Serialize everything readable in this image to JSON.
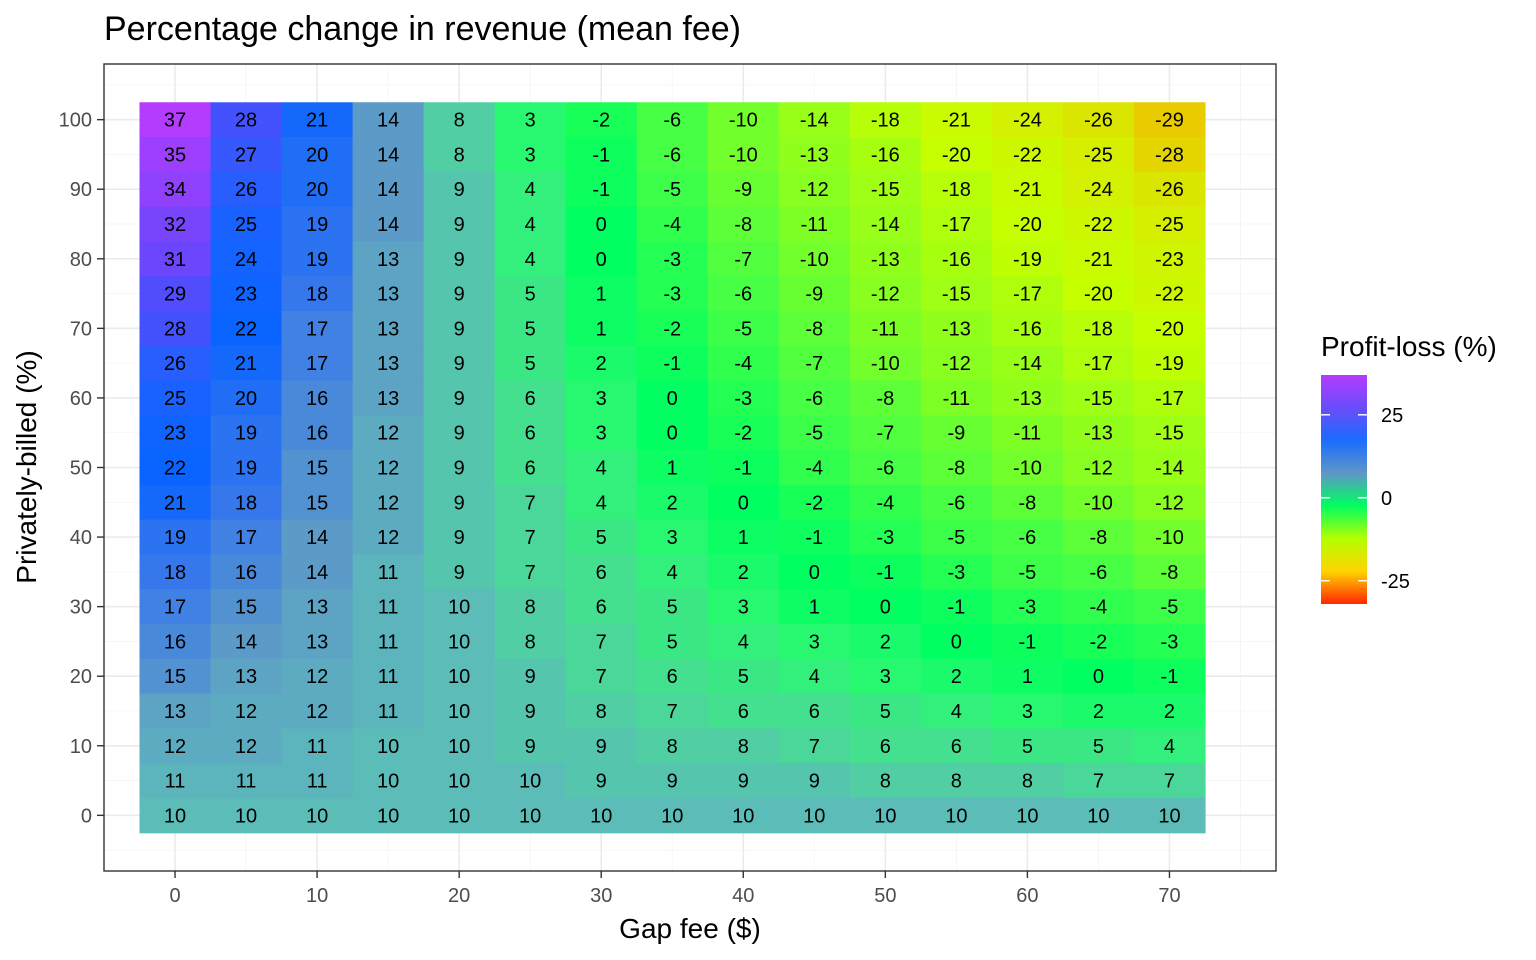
{
  "chart_data": {
    "type": "heatmap",
    "title": "Percentage change in revenue (mean fee)",
    "xlabel": "Gap fee ($)",
    "ylabel": "Privately-billed (%)",
    "x": [
      0,
      5,
      10,
      15,
      20,
      25,
      30,
      35,
      40,
      45,
      50,
      55,
      60,
      65,
      70
    ],
    "y": [
      0,
      5,
      10,
      15,
      20,
      25,
      30,
      35,
      40,
      45,
      50,
      55,
      60,
      65,
      70,
      75,
      80,
      85,
      90,
      95,
      100
    ],
    "values_top_to_bottom": [
      [
        37,
        28,
        21,
        14,
        8,
        3,
        -2,
        -6,
        -10,
        -14,
        -18,
        -21,
        -24,
        -26,
        -29
      ],
      [
        35,
        27,
        20,
        14,
        8,
        3,
        -1,
        -6,
        -10,
        -13,
        -16,
        -20,
        -22,
        -25,
        -28
      ],
      [
        34,
        26,
        20,
        14,
        9,
        4,
        -1,
        -5,
        -9,
        -12,
        -15,
        -18,
        -21,
        -24,
        -26
      ],
      [
        32,
        25,
        19,
        14,
        9,
        4,
        0,
        -4,
        -8,
        -11,
        -14,
        -17,
        -20,
        -22,
        -25
      ],
      [
        31,
        24,
        19,
        13,
        9,
        4,
        0,
        -3,
        -7,
        -10,
        -13,
        -16,
        -19,
        -21,
        -23
      ],
      [
        29,
        23,
        18,
        13,
        9,
        5,
        1,
        -3,
        -6,
        -9,
        -12,
        -15,
        -17,
        -20,
        -22
      ],
      [
        28,
        22,
        17,
        13,
        9,
        5,
        1,
        -2,
        -5,
        -8,
        -11,
        -13,
        -16,
        -18,
        -20
      ],
      [
        26,
        21,
        17,
        13,
        9,
        5,
        2,
        -1,
        -4,
        -7,
        -10,
        -12,
        -14,
        -17,
        -19
      ],
      [
        25,
        20,
        16,
        13,
        9,
        6,
        3,
        0,
        -3,
        -6,
        -8,
        -11,
        -13,
        -15,
        -17
      ],
      [
        23,
        19,
        16,
        12,
        9,
        6,
        3,
        0,
        -2,
        -5,
        -7,
        -9,
        -11,
        -13,
        -15
      ],
      [
        22,
        19,
        15,
        12,
        9,
        6,
        4,
        1,
        -1,
        -4,
        -6,
        -8,
        -10,
        -12,
        -14
      ],
      [
        21,
        18,
        15,
        12,
        9,
        7,
        4,
        2,
        0,
        -2,
        -4,
        -6,
        -8,
        -10,
        -12
      ],
      [
        19,
        17,
        14,
        12,
        9,
        7,
        5,
        3,
        1,
        -1,
        -3,
        -5,
        -6,
        -8,
        -10
      ],
      [
        18,
        16,
        14,
        11,
        9,
        7,
        6,
        4,
        2,
        0,
        -1,
        -3,
        -5,
        -6,
        -8
      ],
      [
        17,
        15,
        13,
        11,
        10,
        8,
        6,
        5,
        3,
        1,
        0,
        -1,
        -3,
        -4,
        -5
      ],
      [
        16,
        14,
        13,
        11,
        10,
        8,
        7,
        5,
        4,
        3,
        2,
        0,
        -1,
        -2,
        -3
      ],
      [
        15,
        13,
        12,
        11,
        10,
        9,
        7,
        6,
        5,
        4,
        3,
        2,
        1,
        0,
        -1
      ],
      [
        13,
        12,
        12,
        11,
        10,
        9,
        8,
        7,
        6,
        6,
        5,
        4,
        3,
        2,
        2
      ],
      [
        12,
        12,
        11,
        10,
        10,
        9,
        9,
        8,
        8,
        7,
        6,
        6,
        5,
        5,
        4
      ],
      [
        11,
        11,
        11,
        10,
        10,
        10,
        9,
        9,
        9,
        9,
        8,
        8,
        8,
        7,
        7
      ],
      [
        10,
        10,
        10,
        10,
        10,
        10,
        10,
        10,
        10,
        10,
        10,
        10,
        10,
        10,
        10
      ]
    ],
    "xlim": [
      -5,
      77.5
    ],
    "ylim": [
      -8,
      108
    ],
    "x_ticks": [
      0,
      10,
      20,
      30,
      40,
      50,
      60,
      70
    ],
    "y_ticks": [
      0,
      10,
      20,
      30,
      40,
      50,
      60,
      70,
      80,
      90,
      100
    ],
    "grid": true,
    "legend": {
      "title": "Profit-loss (%)",
      "placement": "right",
      "ticks": [
        25,
        0,
        -25
      ],
      "range": [
        -32,
        37
      ],
      "gradient_top_to_bottom": [
        "#b43cff",
        "#6a4cfa",
        "#1a6cff",
        "#5e96c6",
        "#00ff60",
        "#b4ff00",
        "#ffd400",
        "#ff2800"
      ]
    },
    "color_scale": [
      {
        "v": -32,
        "c": "#ff2800"
      },
      {
        "v": -29,
        "c": "#e8cc00"
      },
      {
        "v": -25,
        "c": "#d6ee00"
      },
      {
        "v": -20,
        "c": "#c6ff00"
      },
      {
        "v": -12,
        "c": "#88ff20"
      },
      {
        "v": -5,
        "c": "#3cff4a"
      },
      {
        "v": 0,
        "c": "#00ff60"
      },
      {
        "v": 3,
        "c": "#28f870"
      },
      {
        "v": 6,
        "c": "#45df90"
      },
      {
        "v": 10,
        "c": "#5cbcb8"
      },
      {
        "v": 14,
        "c": "#5c9ac8"
      },
      {
        "v": 18,
        "c": "#3678ec"
      },
      {
        "v": 22,
        "c": "#0a64ff"
      },
      {
        "v": 25,
        "c": "#1a62ff"
      },
      {
        "v": 30,
        "c": "#6048fb"
      },
      {
        "v": 37,
        "c": "#b43cff"
      }
    ]
  }
}
